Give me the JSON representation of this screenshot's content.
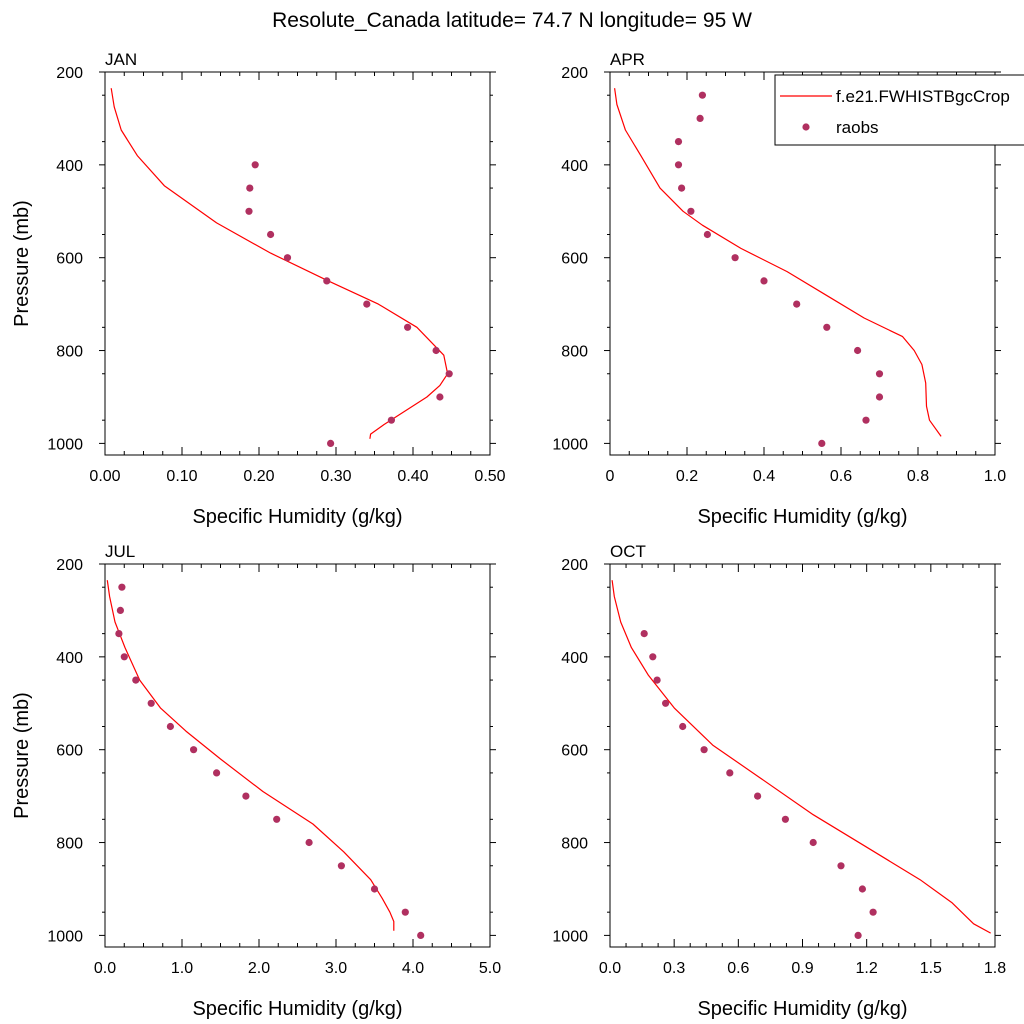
{
  "title": "Resolute_Canada  latitude= 74.7 N longitude= 95 W",
  "colors": {
    "model": "#ff0000",
    "obs": "#b03060",
    "axis": "#000000"
  },
  "legend": {
    "model_label": "f.e21.FWHISTBgcCrop",
    "obs_label": "raobs",
    "placement": "top-right of APR panel"
  },
  "chart_data": [
    {
      "type": "line",
      "panel": "JAN",
      "title": "JAN",
      "xlabel": "Specific Humidity (g/kg)",
      "ylabel": "Pressure (mb)",
      "xlim": [
        0,
        0.5
      ],
      "ylim": [
        1025,
        200
      ],
      "xticks": [
        0,
        0.1,
        0.2,
        0.3,
        0.4,
        0.5
      ],
      "xtick_labels": [
        "0.00",
        "0.10",
        "0.20",
        "0.30",
        "0.40",
        "0.50"
      ],
      "yticks": [
        200,
        400,
        600,
        800,
        1000
      ],
      "ytick_labels": [
        "200",
        "400",
        "600",
        "800",
        "1000"
      ],
      "grid": false,
      "series": [
        {
          "name": "f.e21.FWHISTBgcCrop",
          "kind": "line",
          "x": [
            0.008,
            0.012,
            0.021,
            0.042,
            0.077,
            0.145,
            0.215,
            0.29,
            0.355,
            0.405,
            0.44,
            0.445,
            0.435,
            0.418,
            0.39,
            0.362,
            0.345,
            0.344
          ],
          "y": [
            235,
            275,
            325,
            380,
            445,
            525,
            590,
            650,
            700,
            750,
            810,
            850,
            875,
            900,
            930,
            960,
            980,
            990
          ]
        },
        {
          "name": "raobs",
          "kind": "scatter",
          "x": [
            0.293,
            0.372,
            0.435,
            0.447,
            0.43,
            0.393,
            0.34,
            0.288,
            0.237,
            0.215,
            0.187,
            0.188,
            0.195
          ],
          "y": [
            1000,
            950,
            900,
            850,
            800,
            750,
            700,
            650,
            600,
            550,
            500,
            450,
            400
          ]
        }
      ]
    },
    {
      "type": "line",
      "panel": "APR",
      "title": "APR",
      "xlabel": "Specific Humidity (g/kg)",
      "ylabel": "",
      "xlim": [
        0,
        1.0
      ],
      "ylim": [
        1025,
        200
      ],
      "xticks": [
        0,
        0.2,
        0.4,
        0.6,
        0.8,
        1.0
      ],
      "xtick_labels": [
        "0",
        "0.2",
        "0.4",
        "0.6",
        "0.8",
        "1.0"
      ],
      "yticks": [
        200,
        400,
        600,
        800,
        1000
      ],
      "ytick_labels": [
        "200",
        "400",
        "600",
        "800",
        "1000"
      ],
      "grid": false,
      "series": [
        {
          "name": "f.e21.FWHISTBgcCrop",
          "kind": "line",
          "x": [
            0.012,
            0.018,
            0.04,
            0.08,
            0.13,
            0.19,
            0.24,
            0.34,
            0.46,
            0.56,
            0.66,
            0.76,
            0.79,
            0.81,
            0.82,
            0.822,
            0.83,
            0.86
          ],
          "y": [
            235,
            270,
            325,
            380,
            450,
            500,
            530,
            580,
            630,
            680,
            730,
            770,
            800,
            830,
            870,
            920,
            950,
            985
          ]
        },
        {
          "name": "raobs",
          "kind": "scatter",
          "x": [
            0.55,
            0.665,
            0.7,
            0.7,
            0.643,
            0.563,
            0.485,
            0.4,
            0.325,
            0.253,
            0.21,
            0.186,
            0.178,
            0.178,
            0.234,
            0.24
          ],
          "y": [
            1000,
            950,
            900,
            850,
            800,
            750,
            700,
            650,
            600,
            550,
            500,
            450,
            400,
            350,
            300,
            250
          ]
        }
      ]
    },
    {
      "type": "line",
      "panel": "JUL",
      "title": "JUL",
      "xlabel": "Specific Humidity (g/kg)",
      "ylabel": "Pressure (mb)",
      "xlim": [
        0,
        5.0
      ],
      "ylim": [
        1025,
        200
      ],
      "xticks": [
        0,
        1,
        2,
        3,
        4,
        5
      ],
      "xtick_labels": [
        "0.0",
        "1.0",
        "2.0",
        "3.0",
        "4.0",
        "5.0"
      ],
      "yticks": [
        200,
        400,
        600,
        800,
        1000
      ],
      "ytick_labels": [
        "200",
        "400",
        "600",
        "800",
        "1000"
      ],
      "grid": false,
      "series": [
        {
          "name": "f.e21.FWHISTBgcCrop",
          "kind": "line",
          "x": [
            0.03,
            0.06,
            0.13,
            0.26,
            0.45,
            0.72,
            1.05,
            1.5,
            2.05,
            2.7,
            3.1,
            3.45,
            3.6,
            3.7,
            3.75,
            3.75
          ],
          "y": [
            235,
            270,
            325,
            380,
            450,
            510,
            560,
            620,
            690,
            760,
            820,
            880,
            920,
            950,
            970,
            990
          ]
        },
        {
          "name": "raobs",
          "kind": "scatter",
          "x": [
            4.1,
            3.9,
            3.5,
            3.07,
            2.65,
            2.23,
            1.83,
            1.45,
            1.15,
            0.85,
            0.6,
            0.4,
            0.25,
            0.18,
            0.2,
            0.22
          ],
          "y": [
            1000,
            950,
            900,
            850,
            800,
            750,
            700,
            650,
            600,
            550,
            500,
            450,
            400,
            350,
            300,
            250
          ]
        }
      ]
    },
    {
      "type": "line",
      "panel": "OCT",
      "title": "OCT",
      "xlabel": "Specific Humidity (g/kg)",
      "ylabel": "",
      "xlim": [
        0,
        1.8
      ],
      "ylim": [
        1025,
        200
      ],
      "xticks": [
        0,
        0.3,
        0.6,
        0.9,
        1.2,
        1.5,
        1.8
      ],
      "xtick_labels": [
        "0.0",
        "0.3",
        "0.6",
        "0.9",
        "1.2",
        "1.5",
        "1.8"
      ],
      "yticks": [
        200,
        400,
        600,
        800,
        1000
      ],
      "ytick_labels": [
        "200",
        "400",
        "600",
        "800",
        "1000"
      ],
      "grid": false,
      "series": [
        {
          "name": "f.e21.FWHISTBgcCrop",
          "kind": "line",
          "x": [
            0.01,
            0.02,
            0.05,
            0.1,
            0.18,
            0.3,
            0.48,
            0.7,
            0.95,
            1.2,
            1.45,
            1.6,
            1.7,
            1.78
          ],
          "y": [
            235,
            270,
            325,
            380,
            440,
            510,
            590,
            660,
            740,
            810,
            880,
            930,
            975,
            995
          ]
        },
        {
          "name": "raobs",
          "kind": "scatter",
          "x": [
            1.16,
            1.23,
            1.18,
            1.08,
            0.95,
            0.82,
            0.69,
            0.56,
            0.44,
            0.34,
            0.26,
            0.22,
            0.2,
            0.16
          ],
          "y": [
            1000,
            950,
            900,
            850,
            800,
            750,
            700,
            650,
            600,
            550,
            500,
            450,
            400,
            350
          ]
        }
      ]
    }
  ]
}
